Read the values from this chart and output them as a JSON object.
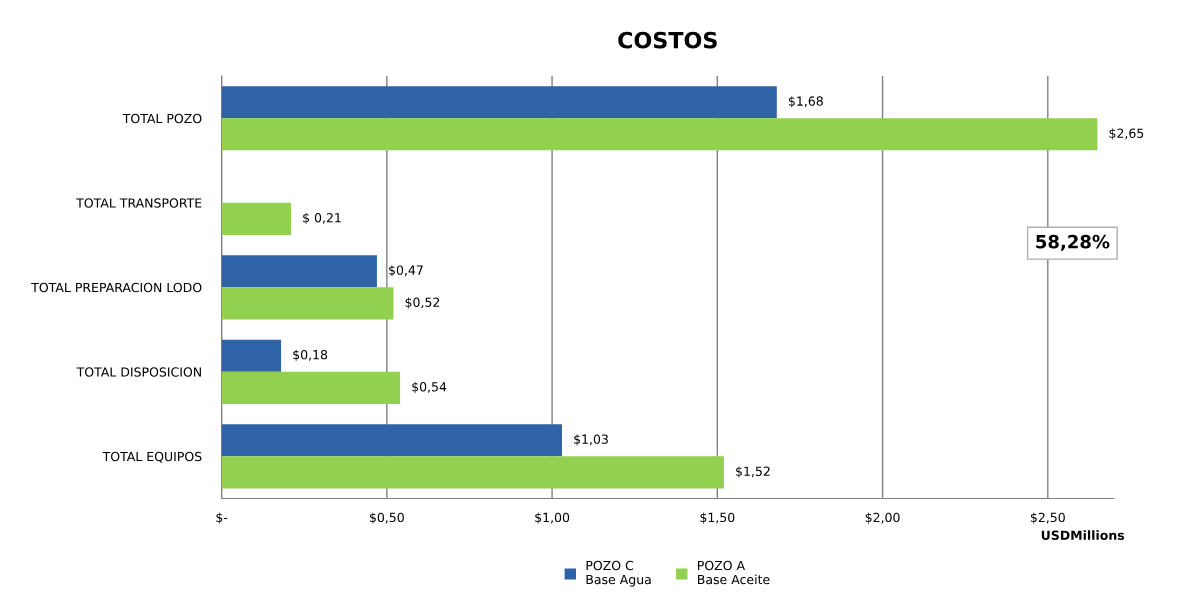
{
  "chart_data": {
    "type": "bar",
    "orientation": "horizontal",
    "title": "COSTOS",
    "xlabel": "USDMillions",
    "categories": [
      "TOTAL POZO",
      "TOTAL TRANSPORTE",
      "TOTAL PREPARACION LODO",
      "TOTAL DISPOSICION",
      "TOTAL EQUIPOS"
    ],
    "series": [
      {
        "name": "POZO C\nBase Agua",
        "color": "#2e63a8",
        "values": [
          1.68,
          null,
          0.47,
          0.18,
          1.03
        ],
        "value_labels": [
          "$1,68",
          null,
          "$0,47",
          "$0,18",
          "$1,03"
        ]
      },
      {
        "name": "POZO A\nBase Aceite",
        "color": "#92d050",
        "values": [
          2.65,
          0.21,
          0.52,
          0.54,
          1.52
        ],
        "value_labels": [
          "$2,65",
          "$ 0,21",
          "$0,52",
          "$0,54",
          "$1,52"
        ]
      }
    ],
    "xlim": [
      0,
      2.7
    ],
    "xticks": [
      {
        "value": 0,
        "label": "$-"
      },
      {
        "value": 0.5,
        "label": "$0,50"
      },
      {
        "value": 1.0,
        "label": "$1,00"
      },
      {
        "value": 1.5,
        "label": "$1,50"
      },
      {
        "value": 2.0,
        "label": "$2,00"
      },
      {
        "value": 2.5,
        "label": "$2,50"
      }
    ],
    "grid": "x",
    "legend": "bottom",
    "annotations": [
      "58,28%"
    ]
  }
}
